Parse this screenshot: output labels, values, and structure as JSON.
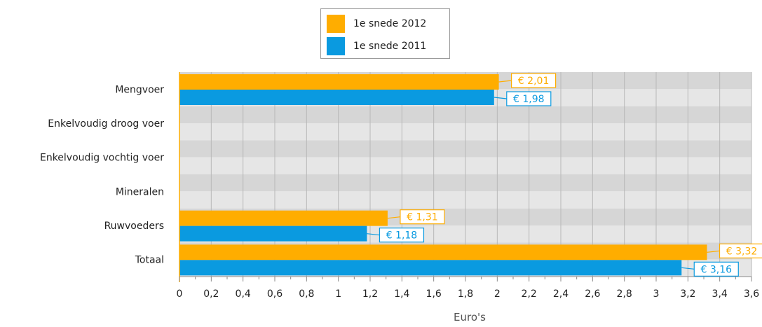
{
  "chart_data": {
    "type": "bar",
    "orientation": "horizontal",
    "categories": [
      "Mengvoer",
      "Enkelvoudig droog voer",
      "Enkelvoudig vochtig voer",
      "Mineralen",
      "Ruwvoeders",
      "Totaal"
    ],
    "series": [
      {
        "name": "1e snede 2012",
        "color": "#ffad00",
        "values": [
          2.01,
          null,
          null,
          null,
          1.31,
          3.32
        ],
        "labels": [
          "€ 2,01",
          "",
          "",
          "",
          "€ 1,31",
          "€ 3,32"
        ]
      },
      {
        "name": "1e snede 2011",
        "color": "#0a9ae0",
        "values": [
          1.98,
          null,
          null,
          null,
          1.18,
          3.16
        ],
        "labels": [
          "€ 1,98",
          "",
          "",
          "",
          "€ 1,18",
          "€ 3,16"
        ]
      }
    ],
    "xlabel": "Euro's",
    "xlim": [
      0,
      3.6
    ],
    "x_ticks": [
      0,
      0.2,
      0.4,
      0.6,
      0.8,
      1,
      1.2,
      1.4,
      1.6,
      1.8,
      2,
      2.2,
      2.4,
      2.6,
      2.8,
      3,
      3.2,
      3.4,
      3.6
    ],
    "x_tick_labels": [
      "0",
      "0,2",
      "0,4",
      "0,6",
      "0,8",
      "1",
      "1,2",
      "1,4",
      "1,6",
      "1,8",
      "2",
      "2,2",
      "2,4",
      "2,6",
      "2,8",
      "3",
      "3,2",
      "3,4",
      "3,6"
    ],
    "grid": true,
    "legend_position": "top"
  }
}
